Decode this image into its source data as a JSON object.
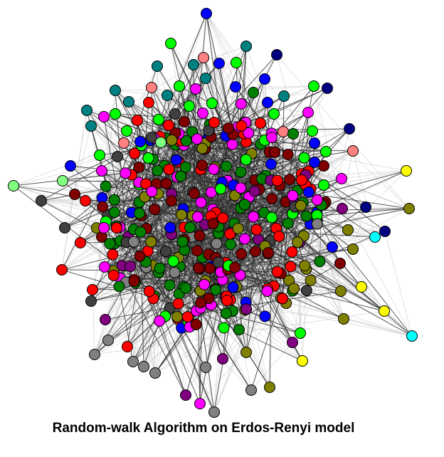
{
  "caption": "Random-walk Algorithm on Erdos-Renyi model",
  "palette": {
    "dark-red": "#800000",
    "red": "#ff0000",
    "green": "#008000",
    "lime": "#00ff00",
    "blue": "#0000ff",
    "navy": "#000080",
    "magenta": "#ff00ff",
    "purple": "#800080",
    "teal": "#008080",
    "salmon": "#ff8080",
    "olive": "#808000",
    "yellow": "#ffff00",
    "cyan": "#00ffff",
    "gray": "#808080",
    "dark-gray": "#404040",
    "light-green": "#80ff80"
  },
  "edge_colors": {
    "outer": "#303030",
    "inner": "#c8c8c8"
  }
}
